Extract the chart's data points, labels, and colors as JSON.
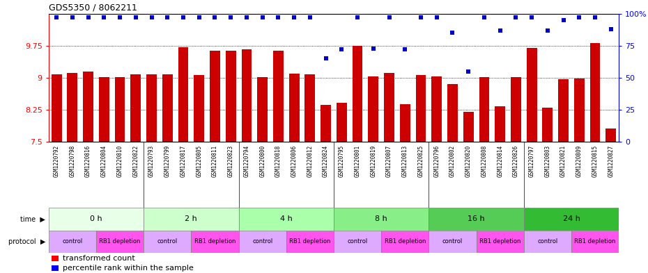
{
  "title": "GDS5350 / 8062211",
  "samples": [
    "GSM1220792",
    "GSM1220798",
    "GSM1220816",
    "GSM1220804",
    "GSM1220810",
    "GSM1220822",
    "GSM1220793",
    "GSM1220799",
    "GSM1220817",
    "GSM1220805",
    "GSM1220811",
    "GSM1220823",
    "GSM1220794",
    "GSM1220800",
    "GSM1220818",
    "GSM1220806",
    "GSM1220812",
    "GSM1220824",
    "GSM1220795",
    "GSM1220801",
    "GSM1220819",
    "GSM1220807",
    "GSM1220813",
    "GSM1220825",
    "GSM1220796",
    "GSM1220802",
    "GSM1220820",
    "GSM1220808",
    "GSM1220814",
    "GSM1220826",
    "GSM1220797",
    "GSM1220803",
    "GSM1220821",
    "GSM1220809",
    "GSM1220815",
    "GSM1220827"
  ],
  "bar_values": [
    9.08,
    9.12,
    9.15,
    9.02,
    9.02,
    9.08,
    9.08,
    9.08,
    9.72,
    9.06,
    9.64,
    9.64,
    9.67,
    9.02,
    9.64,
    9.1,
    9.08,
    8.37,
    8.42,
    9.75,
    9.04,
    9.12,
    8.38,
    9.06,
    9.04,
    8.85,
    8.2,
    9.02,
    8.33,
    9.02,
    9.7,
    8.3,
    8.97,
    8.98,
    9.82,
    7.82
  ],
  "percentile_values": [
    97,
    97,
    97,
    97,
    97,
    97,
    97,
    97,
    97,
    97,
    97,
    97,
    97,
    97,
    97,
    97,
    97,
    65,
    72,
    97,
    73,
    97,
    72,
    97,
    97,
    85,
    55,
    97,
    87,
    97,
    97,
    87,
    95,
    97,
    97,
    88
  ],
  "ylim_left": [
    7.5,
    10.5
  ],
  "yticks_left": [
    7.5,
    8.25,
    9.0,
    9.75
  ],
  "ytick_labels_left": [
    "7.5",
    "8.25",
    "9",
    "9.75"
  ],
  "ytick_labels_right": [
    "0",
    "25",
    "50",
    "75",
    "100%"
  ],
  "yticks_right": [
    0,
    25,
    50,
    75,
    100
  ],
  "bar_color": "#cc0000",
  "dot_color": "#0000cc",
  "time_groups": [
    {
      "label": "0 h",
      "start": 0,
      "end": 6,
      "color": "#e8ffe8"
    },
    {
      "label": "2 h",
      "start": 6,
      "end": 12,
      "color": "#ccffcc"
    },
    {
      "label": "4 h",
      "start": 12,
      "end": 18,
      "color": "#aaffaa"
    },
    {
      "label": "8 h",
      "start": 18,
      "end": 24,
      "color": "#88ee88"
    },
    {
      "label": "16 h",
      "start": 24,
      "end": 30,
      "color": "#55cc55"
    },
    {
      "label": "24 h",
      "start": 30,
      "end": 36,
      "color": "#33bb33"
    }
  ],
  "protocol_groups": [
    {
      "label": "control",
      "start": 0,
      "end": 3
    },
    {
      "label": "RB1 depletion",
      "start": 3,
      "end": 6
    },
    {
      "label": "control",
      "start": 6,
      "end": 9
    },
    {
      "label": "RB1 depletion",
      "start": 9,
      "end": 12
    },
    {
      "label": "control",
      "start": 12,
      "end": 15
    },
    {
      "label": "RB1 depletion",
      "start": 15,
      "end": 18
    },
    {
      "label": "control",
      "start": 18,
      "end": 21
    },
    {
      "label": "RB1 depletion",
      "start": 21,
      "end": 24
    },
    {
      "label": "control",
      "start": 24,
      "end": 27
    },
    {
      "label": "RB1 depletion",
      "start": 27,
      "end": 30
    },
    {
      "label": "control",
      "start": 30,
      "end": 33
    },
    {
      "label": "RB1 depletion",
      "start": 33,
      "end": 36
    }
  ],
  "control_color": "#ddaaff",
  "depletion_color": "#ff55ee",
  "xlabel_bg": "#d8d8d8",
  "fig_width": 9.3,
  "fig_height": 3.93
}
